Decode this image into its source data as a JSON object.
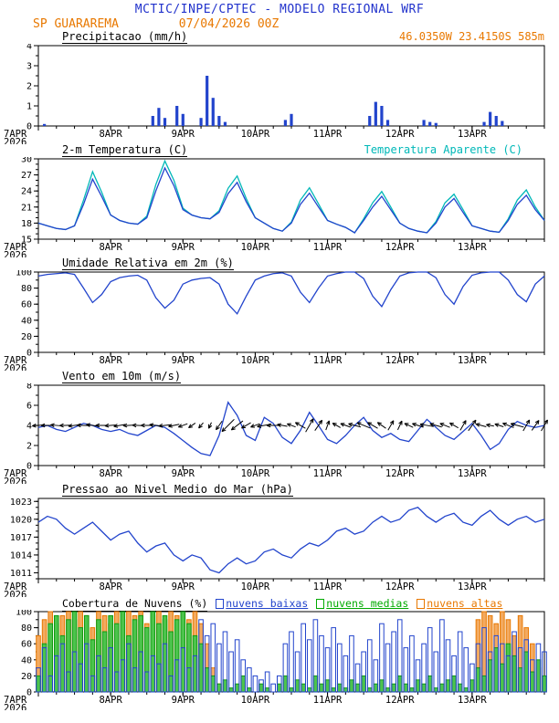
{
  "header": {
    "model_line": "MCTIC/INPE/CPTEC - MODELO REGIONAL WRF",
    "station": "SP GUARAREMA",
    "run": "07/04/2026 00Z"
  },
  "colors": {
    "header_blue": "#2233cc",
    "orange": "#e87800",
    "line_blue": "#2244cc",
    "cyan": "#00b8b8",
    "green": "#00aa00",
    "cloud_orange_fill": "#f3aa60",
    "cloud_green_fill": "#4cc44c"
  },
  "x_axis": {
    "labels": [
      "7APR",
      "8APR",
      "9APR",
      "10APR",
      "11APR",
      "12APR",
      "13APR"
    ],
    "year": "2026",
    "major_step_hours": 24,
    "minor_step_hours": 6,
    "total_hours": 168
  },
  "chart_data": [
    {
      "type": "bar",
      "title": "Precipitacao (mm/h)",
      "right_label": "46.0350W 23.4150S 585m",
      "ylim": [
        0,
        4
      ],
      "yticks": [
        0,
        1,
        2,
        3,
        4
      ],
      "yminor": 0.5,
      "step_hours": 2,
      "color": "#2244cc",
      "values": [
        0,
        0.1,
        0,
        0,
        0,
        0,
        0,
        0,
        0,
        0,
        0,
        0,
        0,
        0,
        0,
        0,
        0,
        0,
        0,
        0.5,
        0.9,
        0.4,
        0,
        1,
        0.6,
        0,
        0,
        0.4,
        2.5,
        1.4,
        0.5,
        0.2,
        0,
        0,
        0,
        0,
        0,
        0,
        0,
        0,
        0,
        0.3,
        0.6,
        0,
        0,
        0,
        0,
        0,
        0,
        0,
        0,
        0,
        0,
        0,
        0,
        0.5,
        1.2,
        1,
        0.3,
        0,
        0,
        0,
        0,
        0,
        0.3,
        0.2,
        0.15,
        0,
        0,
        0,
        0,
        0,
        0,
        0,
        0.2,
        0.7,
        0.5,
        0.25,
        0,
        0,
        0,
        0,
        0,
        0,
        0
      ]
    },
    {
      "type": "line",
      "title": "2-m Temperatura (C)",
      "right_label": "Temperatura Aparente (C)",
      "ylim": [
        15,
        30
      ],
      "yticks": [
        15,
        18,
        21,
        24,
        27,
        30
      ],
      "yminor": 1,
      "step_hours": 3,
      "series": [
        {
          "name": "Temperatura Aparente (C)",
          "color": "#00b8b8",
          "values": [
            18,
            17.5,
            17,
            16.8,
            17.5,
            22.3,
            27.6,
            23.8,
            19.5,
            18.5,
            18,
            17.8,
            19.3,
            25.2,
            29.6,
            26,
            20.8,
            19.5,
            19,
            18.8,
            20.3,
            24.5,
            26.8,
            22.6,
            19,
            18,
            17,
            16.5,
            18.2,
            22.3,
            24.6,
            21.6,
            18.5,
            17.8,
            17.2,
            16.2,
            18.8,
            21.8,
            23.9,
            21,
            18,
            17,
            16.5,
            16.2,
            18.3,
            21.8,
            23.4,
            20.5,
            17.5,
            17,
            16.5,
            16.3,
            18.8,
            22.3,
            24.2,
            21,
            18.5
          ]
        },
        {
          "name": "2-m Temperatura (C)",
          "color": "#2244cc",
          "values": [
            18,
            17.5,
            17,
            16.8,
            17.5,
            21.5,
            26.2,
            23,
            19.5,
            18.5,
            18,
            17.8,
            19,
            24,
            28.3,
            25,
            20.5,
            19.5,
            19,
            18.8,
            20,
            23.5,
            25.6,
            22,
            19,
            18,
            17,
            16.5,
            18,
            21.5,
            23.6,
            21,
            18.5,
            17.8,
            17.2,
            16.2,
            18.5,
            21,
            23,
            20.5,
            18,
            17,
            16.5,
            16.2,
            18,
            21,
            22.6,
            20,
            17.5,
            17,
            16.5,
            16.3,
            18.5,
            21.5,
            23.2,
            20.5,
            18.5
          ]
        }
      ]
    },
    {
      "type": "line",
      "title": "Umidade Relativa em 2m (%)",
      "ylim": [
        0,
        100
      ],
      "yticks": [
        0,
        20,
        40,
        60,
        80,
        100
      ],
      "yminor": 10,
      "step_hours": 3,
      "series": [
        {
          "name": "Umidade Relativa em 2m (%)",
          "color": "#2244cc",
          "values": [
            95,
            97,
            98,
            99,
            97,
            80,
            62,
            72,
            88,
            93,
            95,
            96,
            90,
            68,
            55,
            65,
            85,
            90,
            92,
            93,
            85,
            60,
            48,
            70,
            90,
            95,
            98,
            99,
            95,
            75,
            62,
            80,
            95,
            98,
            100,
            100,
            92,
            70,
            57,
            78,
            95,
            99,
            100,
            100,
            93,
            72,
            60,
            82,
            96,
            99,
            100,
            100,
            90,
            72,
            63,
            85,
            95
          ]
        }
      ]
    },
    {
      "type": "wind",
      "title": "Vento em 10m (m/s)",
      "ylim": [
        0,
        8
      ],
      "yticks": [
        0,
        2,
        4,
        6,
        8
      ],
      "yminor": 1,
      "step_hours": 3,
      "color": "#2244cc",
      "arrow_row_value": 4,
      "speed": [
        3.8,
        4,
        3.6,
        3.4,
        3.8,
        4.2,
        4,
        3.6,
        3.4,
        3.6,
        3.2,
        3,
        3.5,
        4,
        3.8,
        3.2,
        2.5,
        1.8,
        1.2,
        1,
        3,
        6.3,
        5,
        3,
        2.5,
        4.8,
        4.2,
        2.8,
        2.2,
        3.5,
        5.3,
        4,
        2.6,
        2.2,
        3,
        4,
        4.8,
        3.5,
        2.8,
        3.2,
        2.6,
        2.4,
        3.5,
        4.6,
        3.8,
        3,
        2.6,
        3.4,
        4.2,
        3,
        1.6,
        2.2,
        3.6,
        4.4,
        4,
        3.8,
        4
      ],
      "arrow_angles_deg": [
        185,
        180,
        175,
        182,
        188,
        178,
        172,
        180,
        185,
        190,
        183,
        177,
        180,
        174,
        186,
        192,
        200,
        215,
        230,
        245,
        235,
        225,
        218,
        210,
        200,
        190,
        180,
        170,
        160,
        150,
        60,
        55,
        70,
        150,
        160,
        165,
        158,
        150,
        145,
        60,
        65,
        155,
        162,
        170,
        165,
        158,
        150,
        60,
        55,
        165,
        170,
        162,
        158,
        165,
        60,
        55,
        60
      ]
    },
    {
      "type": "line",
      "title": "Pressao ao Nivel Medio do Mar (hPa)",
      "ylim": [
        1010,
        1023.5
      ],
      "yticks": [
        1011,
        1014,
        1017,
        1020,
        1023
      ],
      "yminor": 1,
      "step_hours": 3,
      "series": [
        {
          "name": "Pressao ao Nivel Medio do Mar (hPa)",
          "color": "#2244cc",
          "values": [
            1019.5,
            1020.5,
            1020,
            1018.5,
            1017.5,
            1018.5,
            1019.5,
            1018,
            1016.5,
            1017.5,
            1018,
            1016,
            1014.5,
            1015.5,
            1016,
            1014,
            1013,
            1014,
            1013.5,
            1011.5,
            1011,
            1012.5,
            1013.5,
            1012.5,
            1013,
            1014.5,
            1015,
            1014,
            1013.5,
            1015,
            1016,
            1015.5,
            1016.5,
            1018,
            1018.5,
            1017.5,
            1018,
            1019.5,
            1020.5,
            1019.5,
            1020,
            1021.5,
            1022,
            1020.5,
            1019.5,
            1020.5,
            1021,
            1019.5,
            1019,
            1020.5,
            1021.5,
            1020,
            1019,
            1020,
            1020.5,
            1019.5,
            1020
          ]
        }
      ]
    },
    {
      "type": "clouds",
      "title": "Cobertura de Nuvens (%)",
      "legend": [
        {
          "label": "nuvens baixas",
          "color": "#2244cc"
        },
        {
          "label": "nuvens medias",
          "color": "#00aa00"
        },
        {
          "label": "nuvens altas",
          "color": "#e87800"
        }
      ],
      "ylim": [
        0,
        100
      ],
      "yticks": [
        0,
        20,
        40,
        60,
        80,
        100
      ],
      "yminor": 10,
      "step_hours": 2,
      "series": [
        {
          "name": "nuvens altas",
          "stroke": "#e87800",
          "fill": "#f3aa60",
          "values": [
            70,
            90,
            100,
            85,
            95,
            100,
            90,
            100,
            95,
            80,
            100,
            95,
            85,
            100,
            90,
            100,
            95,
            100,
            85,
            95,
            100,
            90,
            100,
            95,
            100,
            90,
            100,
            85,
            60,
            30,
            10,
            0,
            0,
            0,
            0,
            0,
            0,
            0,
            0,
            0,
            0,
            0,
            0,
            0,
            0,
            0,
            0,
            0,
            0,
            0,
            0,
            0,
            0,
            0,
            0,
            0,
            0,
            0,
            0,
            0,
            0,
            0,
            0,
            0,
            0,
            0,
            0,
            0,
            0,
            0,
            0,
            0,
            0,
            90,
            100,
            95,
            85,
            100,
            90,
            70,
            95,
            80,
            60,
            30,
            0
          ]
        },
        {
          "name": "nuvens medias",
          "stroke": "#119911",
          "fill": "#4cc44c",
          "values": [
            20,
            60,
            85,
            95,
            70,
            90,
            100,
            80,
            95,
            65,
            90,
            75,
            95,
            85,
            100,
            70,
            90,
            95,
            80,
            100,
            85,
            95,
            75,
            90,
            100,
            85,
            70,
            60,
            30,
            20,
            10,
            15,
            5,
            10,
            20,
            5,
            0,
            10,
            5,
            0,
            10,
            20,
            5,
            15,
            10,
            5,
            20,
            10,
            15,
            5,
            10,
            5,
            15,
            10,
            20,
            5,
            10,
            15,
            5,
            10,
            20,
            10,
            5,
            15,
            10,
            20,
            5,
            10,
            15,
            20,
            10,
            5,
            15,
            30,
            20,
            40,
            55,
            35,
            60,
            45,
            30,
            50,
            25,
            40,
            20
          ]
        },
        {
          "name": "nuvens baixas",
          "stroke": "#2244cc",
          "fill": "none",
          "values": [
            30,
            55,
            20,
            45,
            60,
            25,
            50,
            35,
            60,
            20,
            45,
            30,
            55,
            25,
            40,
            60,
            30,
            50,
            25,
            45,
            35,
            60,
            20,
            40,
            55,
            30,
            45,
            90,
            70,
            85,
            60,
            75,
            50,
            65,
            40,
            30,
            20,
            15,
            25,
            10,
            20,
            60,
            75,
            50,
            85,
            65,
            90,
            70,
            55,
            80,
            60,
            45,
            70,
            35,
            50,
            65,
            40,
            85,
            60,
            75,
            90,
            55,
            70,
            40,
            60,
            80,
            50,
            90,
            65,
            45,
            75,
            55,
            35,
            60,
            80,
            50,
            70,
            60,
            45,
            75,
            55,
            65,
            40,
            60,
            50
          ]
        }
      ]
    }
  ]
}
